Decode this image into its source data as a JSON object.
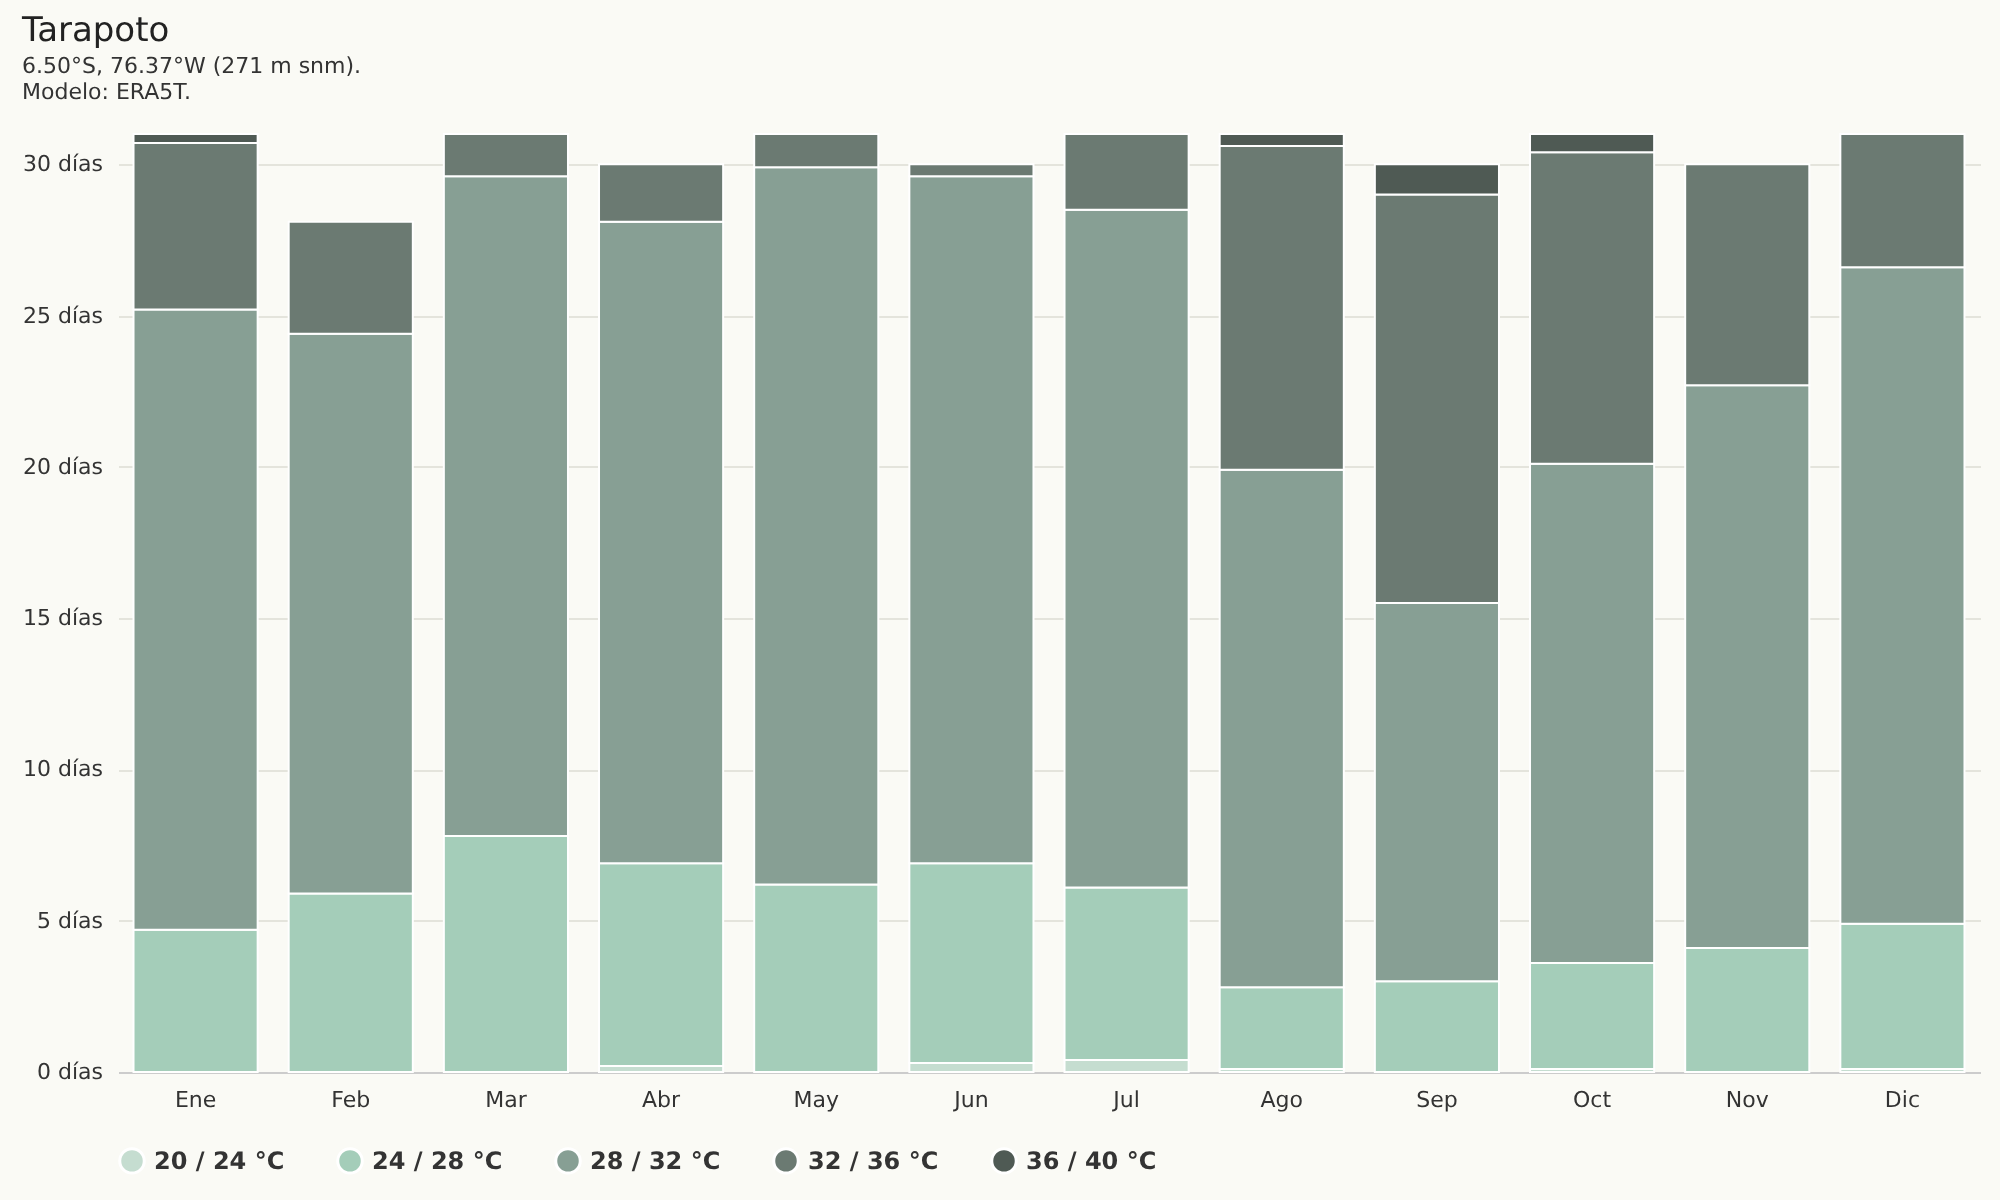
{
  "chart_data": {
    "type": "bar",
    "stacked": true,
    "title": "Tarapoto",
    "subtitle": "6.50°S, 76.37°W (271 m snm).",
    "annotations": [
      "Modelo: ERA5T."
    ],
    "categories": [
      "Ene",
      "Feb",
      "Mar",
      "Abr",
      "May",
      "Jun",
      "Jul",
      "Ago",
      "Sep",
      "Oct",
      "Nov",
      "Dic"
    ],
    "series": [
      {
        "name": "20 / 24 °C",
        "color": "#c5ddd0",
        "values": [
          0,
          0,
          0,
          0.2,
          0,
          0.3,
          0.4,
          0.1,
          0,
          0.1,
          0,
          0.1
        ]
      },
      {
        "name": "24 / 28 °C",
        "color": "#a4cdb9",
        "values": [
          4.7,
          5.9,
          7.8,
          6.7,
          6.2,
          6.6,
          5.7,
          2.7,
          3.0,
          3.5,
          4.1,
          4.8
        ]
      },
      {
        "name": "28 / 32 °C",
        "color": "#879f94",
        "values": [
          20.5,
          18.5,
          21.8,
          21.2,
          23.7,
          22.7,
          22.4,
          17.1,
          12.5,
          16.5,
          18.6,
          21.7
        ]
      },
      {
        "name": "32 / 36 °C",
        "color": "#6b7a72",
        "values": [
          5.5,
          3.7,
          1.4,
          1.9,
          1.1,
          0.4,
          2.5,
          10.7,
          13.5,
          10.3,
          7.3,
          4.4
        ]
      },
      {
        "name": "36 / 40 °C",
        "color": "#4f5a54",
        "values": [
          0.3,
          0,
          0,
          0,
          0,
          0,
          0,
          0.4,
          1.0,
          0.6,
          0,
          0
        ]
      }
    ],
    "ylim": [
      0,
      31
    ],
    "yticks": [
      {
        "value": 0,
        "label": "0 días"
      },
      {
        "value": 5,
        "label": "5 días"
      },
      {
        "value": 10,
        "label": "10 días"
      },
      {
        "value": 15,
        "label": "15 días"
      },
      {
        "value": 20,
        "label": "20 días"
      },
      {
        "value": 25,
        "label": "25 días"
      },
      {
        "value": 30,
        "label": "30 días"
      }
    ],
    "grid": "y",
    "legend": "bottom"
  }
}
